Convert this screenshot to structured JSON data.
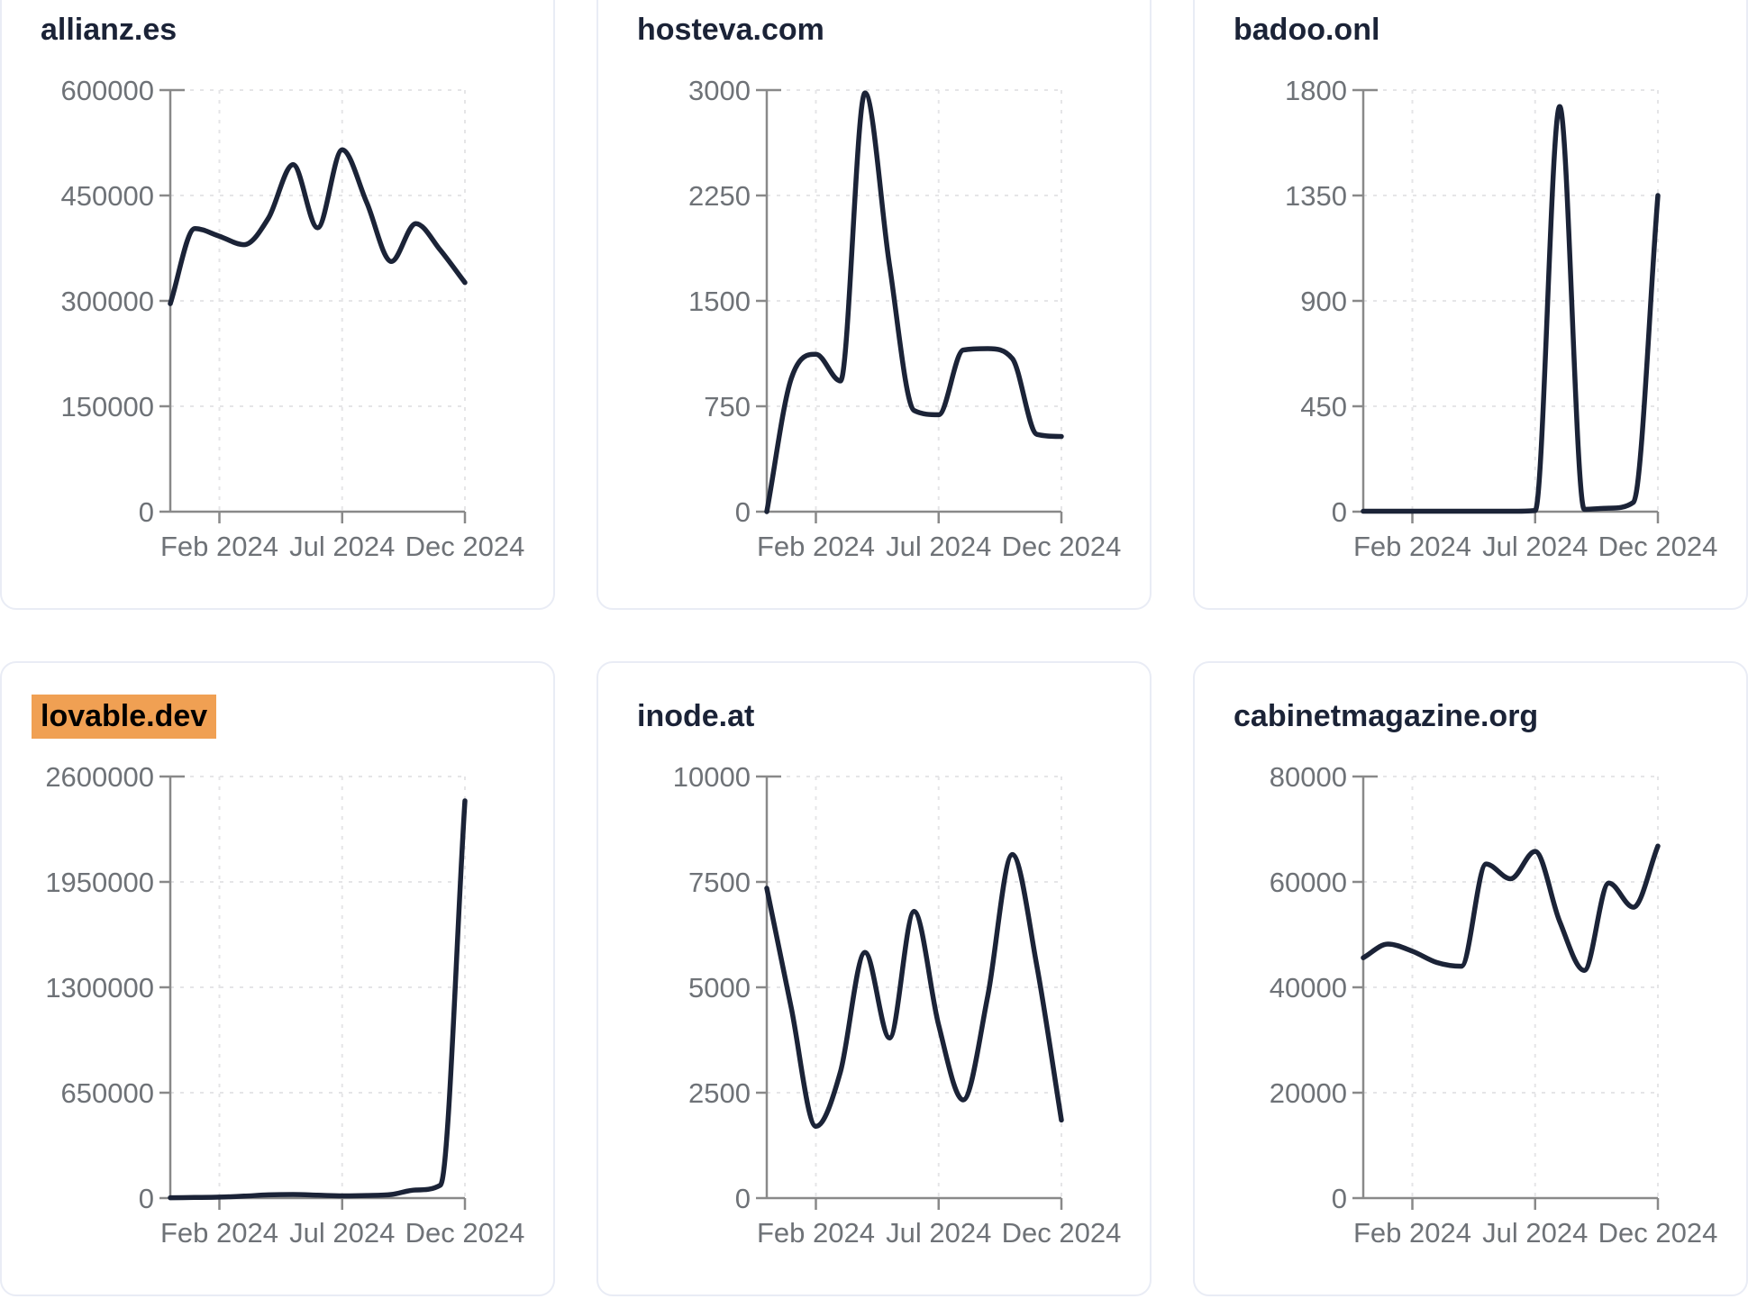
{
  "colors": {
    "background": "#ffffff",
    "line": "#1b2337",
    "title": "#1b2337",
    "axis": "#898989",
    "ticktext": "#6e7277",
    "grid": "#e5e5e7",
    "border": "#e9ecf5",
    "highlight": "#f0a053",
    "highlight_text": "#000000"
  },
  "chart_data": {
    "type": "line",
    "x": [
      "Dec 2023",
      "Jan 2024",
      "Feb 2024",
      "Mar 2024",
      "Apr 2024",
      "May 2024",
      "Jun 2024",
      "Jul 2024",
      "Aug 2024",
      "Sep 2024",
      "Oct 2024",
      "Nov 2024",
      "Dec 2024"
    ],
    "x_tick_labels": [
      "Feb 2024",
      "Jul 2024",
      "Dec 2024"
    ],
    "x_tick_month_indices": [
      2,
      7,
      12
    ],
    "grid": true,
    "legend": "none",
    "charts": [
      {
        "title": "allianz.es",
        "highlighted": false,
        "ylim": [
          0,
          600000
        ],
        "y_ticks": [
          0,
          150000,
          300000,
          450000,
          600000
        ],
        "values": [
          296000,
          403000,
          392000,
          380000,
          418000,
          494000,
          404000,
          515000,
          440000,
          356000,
          410000,
          372000,
          326000
        ]
      },
      {
        "title": "hosteva.com",
        "highlighted": false,
        "ylim": [
          0,
          3000
        ],
        "y_ticks": [
          0,
          750,
          1500,
          2250,
          3000
        ],
        "values": [
          0,
          950,
          1120,
          930,
          2980,
          1750,
          720,
          690,
          1150,
          1160,
          1090,
          550,
          535
        ]
      },
      {
        "title": "badoo.onl",
        "highlighted": false,
        "ylim": [
          0,
          1800
        ],
        "y_ticks": [
          0,
          450,
          900,
          1350,
          1800
        ],
        "values": [
          2,
          2,
          2,
          2,
          2,
          2,
          2,
          5,
          1730,
          10,
          15,
          40,
          1350
        ]
      },
      {
        "title": "lovable.dev",
        "highlighted": true,
        "ylim": [
          0,
          2600000
        ],
        "y_ticks": [
          0,
          650000,
          1300000,
          1950000,
          2600000
        ],
        "values": [
          2000,
          4000,
          6000,
          12000,
          20000,
          22000,
          18000,
          14000,
          16000,
          22000,
          50000,
          80000,
          2450000
        ]
      },
      {
        "title": "inode.at",
        "highlighted": false,
        "ylim": [
          0,
          10000
        ],
        "y_ticks": [
          0,
          2500,
          5000,
          7500,
          10000
        ],
        "values": [
          7350,
          4500,
          1700,
          3000,
          5830,
          3800,
          6800,
          4100,
          2330,
          4800,
          8150,
          5500,
          1850
        ]
      },
      {
        "title": "cabinetmagazine.org",
        "highlighted": false,
        "ylim": [
          0,
          80000
        ],
        "y_ticks": [
          0,
          20000,
          40000,
          60000,
          80000
        ],
        "values": [
          45600,
          48200,
          46850,
          44700,
          44000,
          63400,
          60600,
          65800,
          52500,
          43200,
          59800,
          55200,
          66800
        ]
      }
    ]
  }
}
